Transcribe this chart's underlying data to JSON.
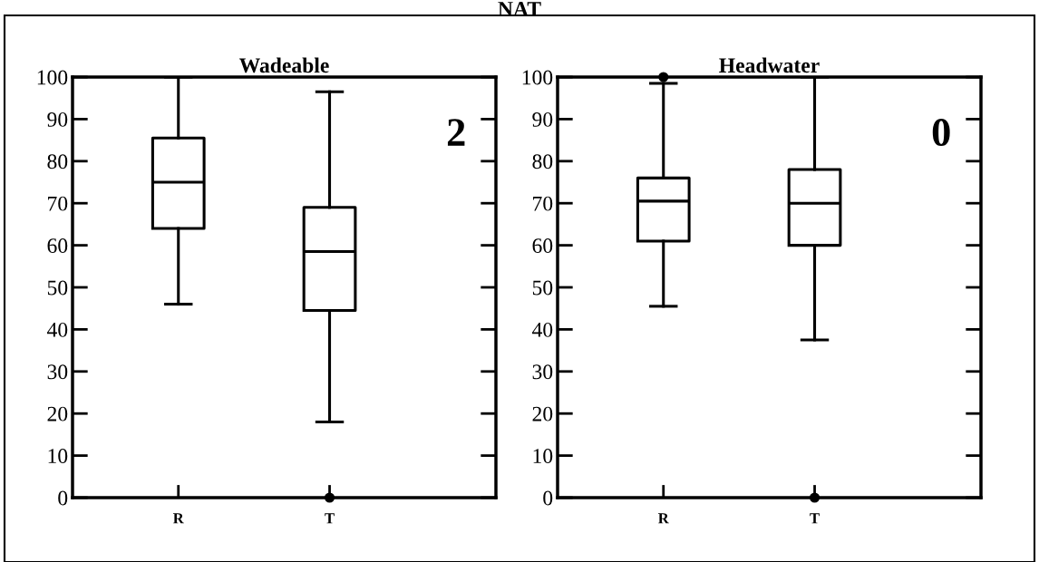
{
  "chart_data": [
    {
      "type": "box",
      "title": "Wadeable",
      "categories": [
        "R",
        "T"
      ],
      "ylim": [
        0,
        100
      ],
      "yticks": [
        0,
        10,
        20,
        30,
        40,
        50,
        60,
        70,
        80,
        90,
        100
      ],
      "annotations": [
        "2",
        "NAT"
      ],
      "grid": false,
      "legend": false,
      "boxes": [
        {
          "low": 46,
          "q1": 64,
          "median": 75,
          "q3": 85.5,
          "high": 100
        },
        {
          "low": 18,
          "q1": 44.5,
          "median": 58.5,
          "q3": 69,
          "high": 96.5,
          "outliers": [
            0
          ]
        }
      ]
    },
    {
      "type": "box",
      "title": "Headwater",
      "categories": [
        "R",
        "T"
      ],
      "ylim": [
        0,
        100
      ],
      "yticks": [
        0,
        10,
        20,
        30,
        40,
        50,
        60,
        70,
        80,
        90,
        100
      ],
      "annotations": [
        "0"
      ],
      "grid": false,
      "legend": false,
      "boxes": [
        {
          "low": 45.5,
          "q1": 61,
          "median": 70.5,
          "q3": 76,
          "high": 98.5,
          "outliers": [
            100
          ]
        },
        {
          "low": 37.5,
          "q1": 60,
          "median": 70,
          "q3": 78,
          "high": 100,
          "outliers": [
            0
          ]
        }
      ]
    }
  ]
}
